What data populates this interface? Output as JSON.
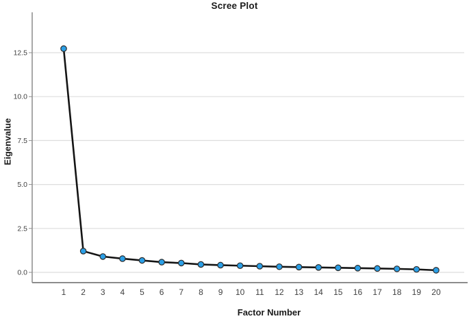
{
  "chart_data": {
    "type": "line",
    "title": "Scree Plot",
    "xlabel": "Factor Number",
    "ylabel": "Eigenvalue",
    "x": [
      1,
      2,
      3,
      4,
      5,
      6,
      7,
      8,
      9,
      10,
      11,
      12,
      13,
      14,
      15,
      16,
      17,
      18,
      19,
      20
    ],
    "values": [
      12.73,
      1.21,
      0.9,
      0.78,
      0.68,
      0.58,
      0.53,
      0.45,
      0.41,
      0.38,
      0.35,
      0.32,
      0.3,
      0.28,
      0.26,
      0.24,
      0.22,
      0.2,
      0.17,
      0.12
    ],
    "yticks": [
      0.0,
      2.5,
      5.0,
      7.5,
      10.0,
      12.5
    ],
    "ytick_labels": [
      "0.0",
      "2.5",
      "5.0",
      "7.5",
      "10.0",
      "12.5"
    ],
    "ylim": [
      -0.6,
      14.8
    ],
    "grid": "horizontal",
    "legend": "none",
    "marker": "circle",
    "colors": {
      "line": "#141414",
      "marker_fill": "#2b9fe6",
      "marker_stroke": "#2b2b2b",
      "grid": "#dedede",
      "axis": "#8c8c8c",
      "tick_text": "#3f3f3f",
      "title_text": "#1a1a1a"
    }
  }
}
